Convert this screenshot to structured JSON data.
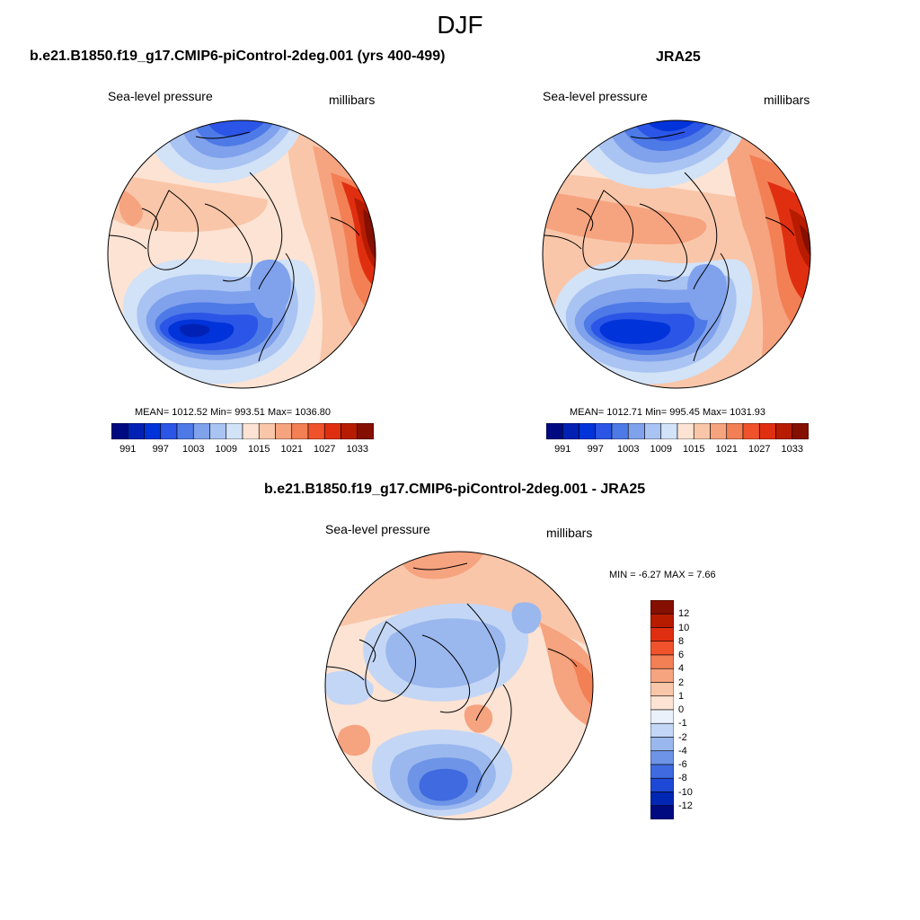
{
  "figure": {
    "season": "DJF"
  },
  "panels": [
    {
      "title": "b.e21.B1850.f19_g17.CMIP6-piControl-2deg.001 (yrs 400-499)",
      "left_label": "Sea-level pressure",
      "right_label": "millibars",
      "stats": "MEAN= 1012.52  Min= 993.51  Max= 1036.80"
    },
    {
      "title": "JRA25",
      "left_label": "Sea-level pressure",
      "right_label": "millibars",
      "stats": "MEAN= 1012.71  Min= 995.45  Max= 1031.93"
    },
    {
      "title": "b.e21.B1850.f19_g17.CMIP6-piControl-2deg.001 - JRA25",
      "left_label": "Sea-level pressure",
      "right_label": "millibars",
      "stats": "MIN =  -6.27 MAX =   7.66"
    }
  ],
  "colorbar_abs": {
    "tick_labels": [
      "991",
      "997",
      "1003",
      "1009",
      "1015",
      "1021",
      "1027",
      "1033"
    ],
    "colors": [
      "#000a80",
      "#0021b3",
      "#0033d9",
      "#2b55e6",
      "#4d7ae6",
      "#80a1ec",
      "#a9c3f2",
      "#d2e2f7",
      "#fce3d3",
      "#f9c6a9",
      "#f6a37f",
      "#f37f55",
      "#f0532b",
      "#e02f10",
      "#b71c00",
      "#850f00"
    ]
  },
  "colorbar_diff": {
    "tick_labels": [
      "12",
      "10",
      "8",
      "6",
      "4",
      "2",
      "1",
      "0",
      "-1",
      "-2",
      "-4",
      "-6",
      "-8",
      "-10",
      "-12"
    ],
    "colors": [
      "#850f00",
      "#b71c00",
      "#e02f10",
      "#f0532b",
      "#f37f55",
      "#f6a37f",
      "#f9c6a9",
      "#fce3d3",
      "#ebf1fb",
      "#c4d6f5",
      "#9ab8ee",
      "#6d94e6",
      "#3f6ae0",
      "#1e49d6",
      "#0027b3",
      "#000a80"
    ]
  },
  "map_fields": {
    "panel_1": {
      "mean": 1012.52,
      "min": 993.51,
      "max": 1036.8
    },
    "panel_2": {
      "mean": 1012.71,
      "min": 995.45,
      "max": 1031.93
    },
    "diff": {
      "min": -6.27,
      "max": 7.66
    }
  }
}
